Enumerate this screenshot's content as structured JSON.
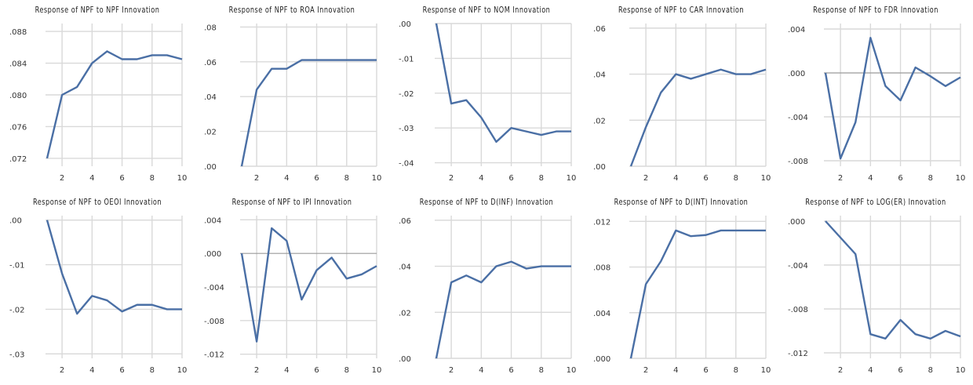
{
  "style": {
    "line_color": "#4a6fa5",
    "grid_color": "#d9d9d9",
    "zero_line_color": "#9a9a9a"
  },
  "chart_data": [
    {
      "type": "line",
      "title": "Response of NPF to NPF Innovation",
      "x": [
        1,
        2,
        3,
        4,
        5,
        6,
        7,
        8,
        9,
        10
      ],
      "y": [
        0.072,
        0.08,
        0.081,
        0.084,
        0.0855,
        0.0845,
        0.0845,
        0.085,
        0.085,
        0.0845
      ],
      "ylim": [
        0.071,
        0.089
      ],
      "yticks": [
        0.072,
        0.076,
        0.08,
        0.084,
        0.088
      ],
      "ytick_labels": [
        ".072",
        ".076",
        ".080",
        ".084",
        ".088"
      ],
      "xticks": [
        2,
        4,
        6,
        8,
        10
      ],
      "grid": true
    },
    {
      "type": "line",
      "title": "Response of NPF to ROA Innovation",
      "x": [
        1,
        2,
        3,
        4,
        5,
        6,
        7,
        8,
        9,
        10
      ],
      "y": [
        0.0,
        0.044,
        0.056,
        0.056,
        0.061,
        0.061,
        0.061,
        0.061,
        0.061,
        0.061
      ],
      "ylim": [
        0.0,
        0.082
      ],
      "yticks": [
        0.0,
        0.02,
        0.04,
        0.06,
        0.08
      ],
      "ytick_labels": [
        ".00",
        ".02",
        ".04",
        ".06",
        ".08"
      ],
      "xticks": [
        2,
        4,
        6,
        8,
        10
      ],
      "grid": true
    },
    {
      "type": "line",
      "title": "Response of NPF to NOM Innovation",
      "x": [
        1,
        2,
        3,
        4,
        5,
        6,
        7,
        8,
        9,
        10
      ],
      "y": [
        0.0,
        -0.023,
        -0.022,
        -0.027,
        -0.034,
        -0.03,
        -0.031,
        -0.032,
        -0.031,
        -0.031
      ],
      "ylim": [
        -0.041,
        0.0
      ],
      "yticks": [
        0.0,
        -0.01,
        -0.02,
        -0.03,
        -0.04
      ],
      "ytick_labels": [
        ".00",
        "-.01",
        "-.02",
        "-.03",
        "-.04"
      ],
      "xticks": [
        2,
        4,
        6,
        8,
        10
      ],
      "grid": true
    },
    {
      "type": "line",
      "title": "Response of NPF to CAR Innovation",
      "x": [
        1,
        2,
        3,
        4,
        5,
        6,
        7,
        8,
        9,
        10
      ],
      "y": [
        0.0,
        0.017,
        0.032,
        0.04,
        0.038,
        0.04,
        0.042,
        0.04,
        0.04,
        0.042
      ],
      "ylim": [
        0.0,
        0.062
      ],
      "yticks": [
        0.0,
        0.02,
        0.04,
        0.06
      ],
      "ytick_labels": [
        ".00",
        ".02",
        ".04",
        ".06"
      ],
      "xticks": [
        2,
        4,
        6,
        8,
        10
      ],
      "zero_line": false,
      "grid": true
    },
    {
      "type": "line",
      "title": "Response of NPF to FDR Innovation",
      "x": [
        1,
        2,
        3,
        4,
        5,
        6,
        7,
        8,
        9,
        10
      ],
      "y": [
        0.0,
        -0.0078,
        -0.0045,
        0.0032,
        -0.0012,
        -0.0025,
        0.0005,
        -0.0003,
        -0.0012,
        -0.0004
      ],
      "ylim": [
        -0.0085,
        0.0045
      ],
      "yticks": [
        0.004,
        0.0,
        -0.004,
        -0.008
      ],
      "ytick_labels": [
        ".004",
        ".000",
        "-.004",
        "-.008"
      ],
      "xticks": [
        2,
        4,
        6,
        8,
        10
      ],
      "zero_line": true,
      "grid": true
    },
    {
      "type": "line",
      "title": "Response of NPF to OEOI Innovation",
      "x": [
        1,
        2,
        3,
        4,
        5,
        6,
        7,
        8,
        9,
        10
      ],
      "y": [
        0.0,
        -0.012,
        -0.021,
        -0.017,
        -0.018,
        -0.0205,
        -0.019,
        -0.019,
        -0.02,
        -0.02
      ],
      "ylim": [
        -0.031,
        0.001
      ],
      "yticks": [
        0.0,
        -0.01,
        -0.02,
        -0.03
      ],
      "ytick_labels": [
        ".00",
        "-.01",
        "-.02",
        "-.03"
      ],
      "xticks": [
        2,
        4,
        6,
        8,
        10
      ],
      "grid": true
    },
    {
      "type": "line",
      "title": "Response of NPF to IPI Innovation",
      "x": [
        1,
        2,
        3,
        4,
        5,
        6,
        7,
        8,
        9,
        10
      ],
      "y": [
        0.0,
        -0.0105,
        0.003,
        0.0015,
        -0.0055,
        -0.002,
        -0.0005,
        -0.003,
        -0.0025,
        -0.0015
      ],
      "ylim": [
        -0.0125,
        0.0045
      ],
      "yticks": [
        0.004,
        0.0,
        -0.004,
        -0.008,
        -0.012
      ],
      "ytick_labels": [
        ".004",
        ".000",
        "-.004",
        "-.008",
        "-.012"
      ],
      "xticks": [
        2,
        4,
        6,
        8,
        10
      ],
      "zero_line": true,
      "grid": true
    },
    {
      "type": "line",
      "title": "Response of NPF to D(INF) Innovation",
      "x": [
        1,
        2,
        3,
        4,
        5,
        6,
        7,
        8,
        9,
        10
      ],
      "y": [
        0.0,
        0.033,
        0.036,
        0.033,
        0.04,
        0.042,
        0.039,
        0.04,
        0.04,
        0.04
      ],
      "ylim": [
        0.0,
        0.062
      ],
      "yticks": [
        0.0,
        0.02,
        0.04,
        0.06
      ],
      "ytick_labels": [
        ".00",
        ".02",
        ".04",
        ".06"
      ],
      "xticks": [
        2,
        4,
        6,
        8,
        10
      ],
      "grid": true
    },
    {
      "type": "line",
      "title": "Response of NPF to D(INT) Innovation",
      "x": [
        1,
        2,
        3,
        4,
        5,
        6,
        7,
        8,
        9,
        10
      ],
      "y": [
        0.0,
        0.0065,
        0.0085,
        0.0112,
        0.0107,
        0.0108,
        0.0112,
        0.0112,
        0.0112,
        0.0112
      ],
      "ylim": [
        0.0,
        0.0125
      ],
      "yticks": [
        0.0,
        0.004,
        0.008,
        0.012
      ],
      "ytick_labels": [
        ".000",
        ".004",
        ".008",
        ".012"
      ],
      "xticks": [
        2,
        4,
        6,
        8,
        10
      ],
      "grid": true
    },
    {
      "type": "line",
      "title": "Response of NPF to LOG(ER) Innovation",
      "x": [
        1,
        2,
        3,
        4,
        5,
        6,
        7,
        8,
        9,
        10
      ],
      "y": [
        0.0,
        -0.0015,
        -0.003,
        -0.0103,
        -0.0107,
        -0.009,
        -0.0103,
        -0.0107,
        -0.01,
        -0.0105
      ],
      "ylim": [
        -0.0125,
        0.0005
      ],
      "yticks": [
        0.0,
        -0.004,
        -0.008,
        -0.012
      ],
      "ytick_labels": [
        ".000",
        "-.004",
        "-.008",
        "-.012"
      ],
      "xticks": [
        2,
        4,
        6,
        8,
        10
      ],
      "grid": true
    }
  ]
}
